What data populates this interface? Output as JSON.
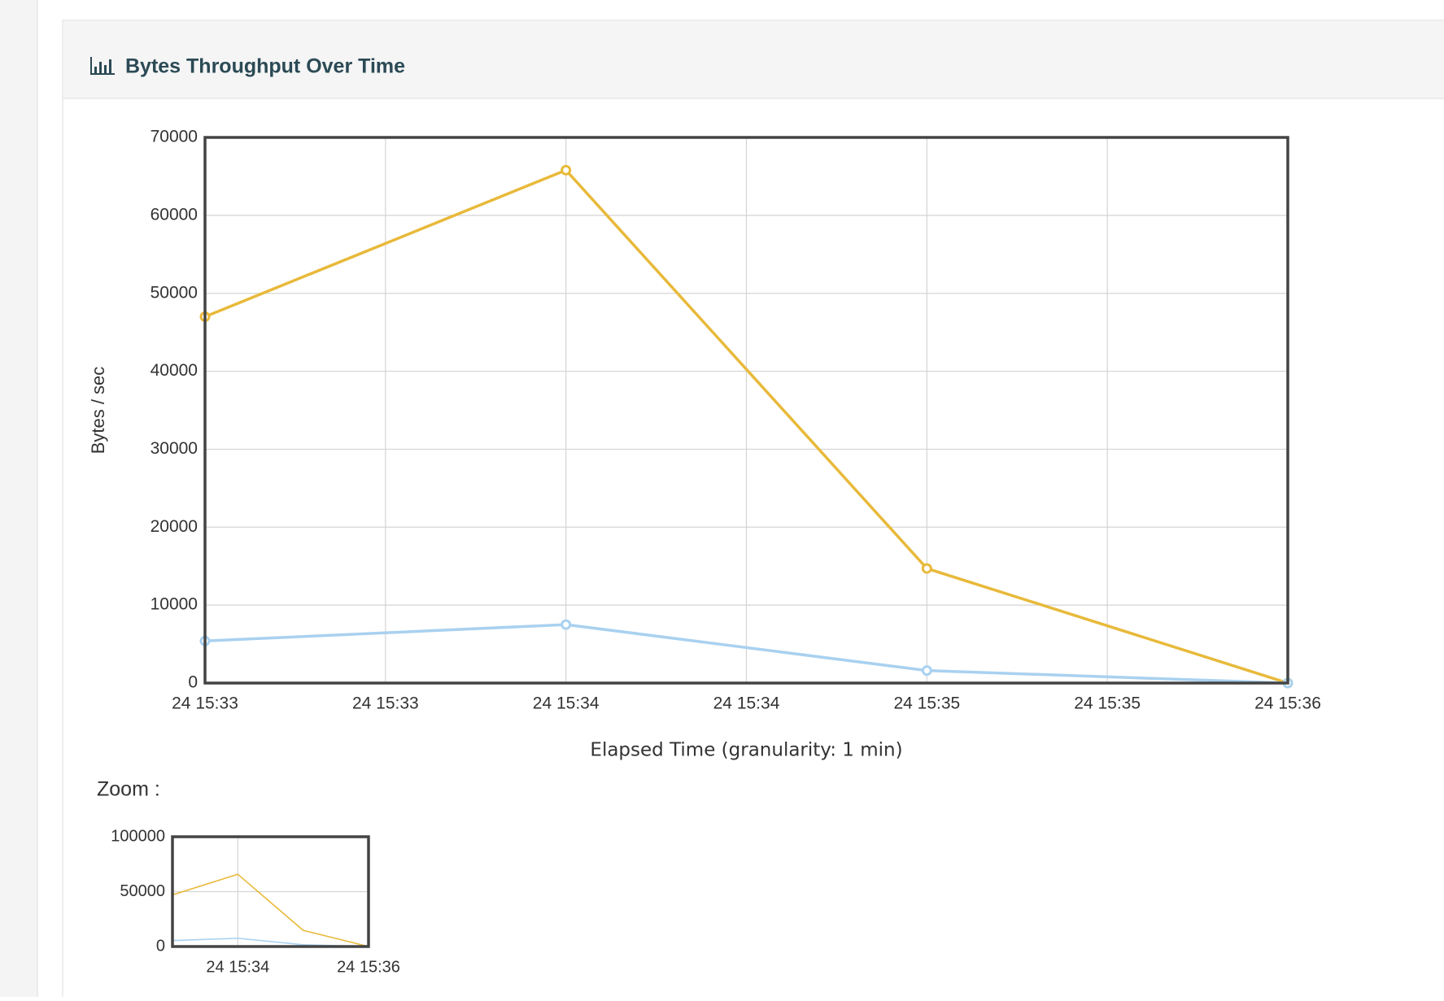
{
  "panel": {
    "title": "Bytes Throughput Over Time"
  },
  "chart_data": [
    {
      "type": "line",
      "ylabel": "Bytes / sec",
      "xlabel": "Elapsed Time (granularity: 1 min)",
      "x": [
        "24 15:33",
        "24 15:34",
        "24 15:35",
        "24 15:36"
      ],
      "series": [
        {
          "color": "#e8b93a",
          "values": [
            47000,
            65800,
            14700,
            0
          ]
        },
        {
          "color": "#a9d1f0",
          "values": [
            5400,
            7500,
            1600,
            0
          ]
        }
      ],
      "xlim": [
        "24 15:33:00",
        "24 15:36:00"
      ],
      "xticks": [
        {
          "value": "24 15:33:00",
          "label": "24 15:33"
        },
        {
          "value": "24 15:33:30",
          "label": "24 15:33"
        },
        {
          "value": "24 15:34:00",
          "label": "24 15:34"
        },
        {
          "value": "24 15:34:30",
          "label": "24 15:34"
        },
        {
          "value": "24 15:35:00",
          "label": "24 15:35"
        },
        {
          "value": "24 15:35:30",
          "label": "24 15:35"
        },
        {
          "value": "24 15:36:00",
          "label": "24 15:36"
        }
      ],
      "ylim": [
        0,
        70000
      ],
      "yticks": [
        0,
        10000,
        20000,
        30000,
        40000,
        50000,
        60000,
        70000
      ],
      "grid": true,
      "markers": true
    },
    {
      "type": "line",
      "title": "Zoom :",
      "x": [
        "24 15:33",
        "24 15:34",
        "24 15:35",
        "24 15:36"
      ],
      "series": [
        {
          "color": "#e8b93a",
          "values": [
            47000,
            65800,
            14700,
            0
          ]
        },
        {
          "color": "#a9d1f0",
          "values": [
            5400,
            7500,
            1600,
            0
          ]
        }
      ],
      "xlim": [
        "24 15:33:00",
        "24 15:36:00"
      ],
      "xticks": [
        {
          "value": "24 15:34:00",
          "label": "24 15:34"
        },
        {
          "value": "24 15:36:00",
          "label": "24 15:36"
        }
      ],
      "ylim": [
        0,
        100000
      ],
      "yticks": [
        0,
        50000,
        100000
      ],
      "grid": true,
      "markers": false
    }
  ]
}
